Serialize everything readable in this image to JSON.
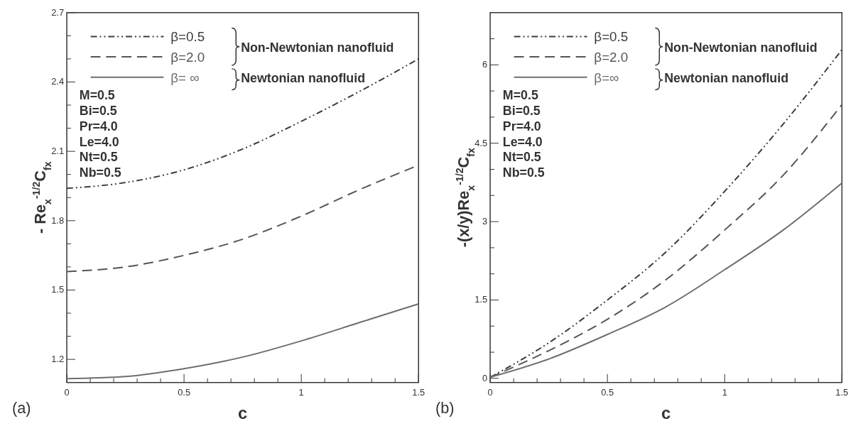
{
  "chart_data": [
    {
      "type": "line",
      "xlabel": "c",
      "ylabel": "- Re$_{x}$$^{-1/2}$C$_{fx}$",
      "x": [
        0,
        0.25,
        0.5,
        0.75,
        1,
        1.25,
        1.5
      ],
      "series": [
        {
          "name": "β=0.5",
          "color": "#3c3c3c",
          "line_style": "dotted",
          "values": [
            1.94,
            1.965,
            2.02,
            2.11,
            2.23,
            2.36,
            2.5
          ]
        },
        {
          "name": "β=2.0",
          "color": "#555555",
          "line_style": "dashed",
          "values": [
            1.58,
            1.6,
            1.65,
            1.72,
            1.82,
            1.935,
            2.04
          ]
        },
        {
          "name": "β= ∞",
          "color": "#6e6e6e",
          "line_style": "solid",
          "values": [
            1.117,
            1.126,
            1.16,
            1.21,
            1.28,
            1.36,
            1.44
          ]
        }
      ],
      "xlim": [
        0,
        1.5
      ],
      "ylim": [
        1.1,
        2.7
      ],
      "xticks": [
        0,
        {
          "value": 0.1,
          "label": null
        },
        {
          "value": 0.2,
          "label": null
        },
        {
          "value": 0.3,
          "label": null
        },
        {
          "value": 0.4,
          "label": null
        },
        0.5,
        {
          "value": 0.6,
          "label": null
        },
        {
          "value": 0.7,
          "label": null
        },
        {
          "value": 0.8,
          "label": null
        },
        {
          "value": 0.9,
          "label": null
        },
        1,
        {
          "value": 1.1,
          "label": null
        },
        {
          "value": 1.2,
          "label": null
        },
        {
          "value": 1.3,
          "label": null
        },
        {
          "value": 1.4,
          "label": null
        },
        1.5
      ],
      "yticks": [
        1.2,
        {
          "value": 1.3,
          "label": null
        },
        {
          "value": 1.4,
          "label": null
        },
        1.5,
        {
          "value": 1.6,
          "label": null
        },
        {
          "value": 1.7,
          "label": null
        },
        1.8,
        {
          "value": 1.9,
          "label": null
        },
        {
          "value": 2.0,
          "label": null
        },
        2.1,
        {
          "value": 2.2,
          "label": null
        },
        {
          "value": 2.3,
          "label": null
        },
        2.4,
        {
          "value": 2.5,
          "label": null
        },
        {
          "value": 2.6,
          "label": null
        },
        2.7
      ],
      "legend": "top left",
      "annotations": [
        "Non-Newtonian nanofluid",
        "Newtonian nanofluid",
        "M=0.5",
        "Bi=0.5",
        "Pr=4.0",
        "Le=4.0",
        "Nt=0.5",
        "Nb=0.5",
        "(a)"
      ]
    },
    {
      "type": "line",
      "xlabel": "c",
      "ylabel": "-(x/y)Re$_{x}$$^{-1/2}$C$_{fx}$",
      "x": [
        0,
        0.25,
        0.5,
        0.75,
        1,
        1.25,
        1.5
      ],
      "series": [
        {
          "name": "β=0.5",
          "color": "#3c3c3c",
          "line_style": "dotted",
          "values": [
            0.02,
            0.68,
            1.5,
            2.42,
            3.58,
            4.87,
            6.29
          ]
        },
        {
          "name": "β=2.0",
          "color": "#555555",
          "line_style": "dashed",
          "values": [
            0.02,
            0.53,
            1.13,
            1.89,
            2.84,
            3.89,
            5.24
          ]
        },
        {
          "name": "β=∞",
          "color": "#6e6e6e",
          "line_style": "solid",
          "values": [
            0.02,
            0.37,
            0.84,
            1.37,
            2.08,
            2.84,
            3.74
          ]
        }
      ],
      "xlim": [
        0,
        1.5
      ],
      "ylim": [
        -0.08,
        7.0
      ],
      "xticks": [
        0,
        {
          "value": 0.1,
          "label": null
        },
        {
          "value": 0.2,
          "label": null
        },
        {
          "value": 0.3,
          "label": null
        },
        {
          "value": 0.4,
          "label": null
        },
        0.5,
        {
          "value": 0.6,
          "label": null
        },
        {
          "value": 0.7,
          "label": null
        },
        {
          "value": 0.8,
          "label": null
        },
        {
          "value": 0.9,
          "label": null
        },
        1,
        {
          "value": 1.1,
          "label": null
        },
        {
          "value": 1.2,
          "label": null
        },
        {
          "value": 1.3,
          "label": null
        },
        {
          "value": 1.4,
          "label": null
        },
        1.5
      ],
      "yticks": [
        0,
        {
          "value": 0.5,
          "label": null
        },
        {
          "value": 1,
          "label": null
        },
        1.5,
        {
          "value": 2,
          "label": null
        },
        {
          "value": 2.5,
          "label": null
        },
        3,
        {
          "value": 3.5,
          "label": null
        },
        {
          "value": 4,
          "label": null
        },
        4.5,
        {
          "value": 5,
          "label": null
        },
        {
          "value": 5.5,
          "label": null
        },
        6,
        {
          "value": 6.5,
          "label": null
        }
      ],
      "legend": "top left",
      "annotations": [
        "Non-Newtonian nanofluid",
        "Newtonian nanofluid",
        "M=0.5",
        "Bi=0.5",
        "Pr=4.0",
        "Le=4.0",
        "Nt=0.5",
        "Nb=0.5",
        "(b)"
      ]
    }
  ]
}
